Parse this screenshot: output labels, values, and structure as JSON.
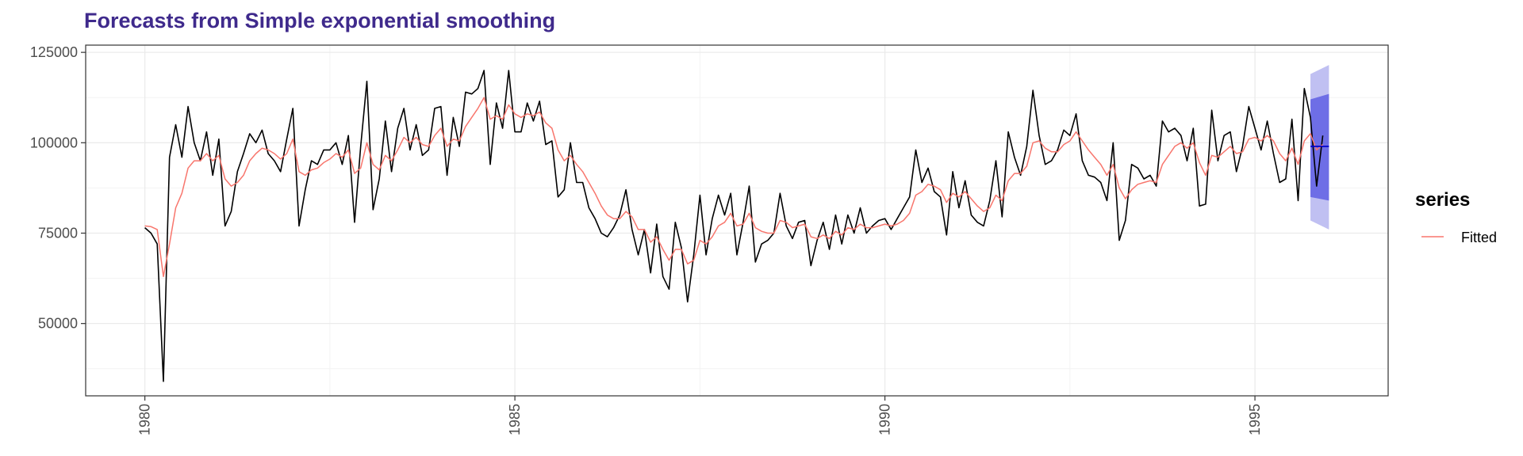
{
  "chart_data": {
    "type": "line",
    "title": "Forecasts from Simple exponential smoothing",
    "xlabel": "",
    "ylabel": "",
    "xlim": [
      1979.2,
      1996.8
    ],
    "ylim": [
      30000,
      127000
    ],
    "x_ticks": [
      1980,
      1985,
      1990,
      1995
    ],
    "x_tick_labels": [
      "1980",
      "1985",
      "1990",
      "1995"
    ],
    "y_ticks": [
      50000,
      75000,
      100000,
      125000
    ],
    "y_tick_labels": [
      "50000",
      "75000",
      "100000",
      "125000"
    ],
    "grid": true,
    "legend": {
      "title": "series",
      "placement": "right",
      "entries": [
        {
          "label": "Fitted",
          "color": "#f8766d"
        }
      ]
    },
    "colors": {
      "title": "#3f2a8c",
      "actual": "#000000",
      "fitted": "#f8766d",
      "forecast": "#0000cc",
      "band80": "#6e6ee6",
      "band95": "#c0c0f2"
    },
    "series": [
      {
        "role": "actual",
        "start": 1980.0,
        "frequency": 12,
        "values": [
          76500,
          75000,
          72000,
          34000,
          96000,
          105000,
          96000,
          110000,
          100000,
          95000,
          103000,
          91000,
          101000,
          77000,
          81000,
          92000,
          97000,
          102500,
          100000,
          103500,
          97000,
          95000,
          92000,
          101000,
          109500,
          77000,
          87000,
          95000,
          94000,
          98000,
          98000,
          100000,
          94000,
          102000,
          78000,
          99000,
          117000,
          81500,
          90000,
          106000,
          92000,
          104000,
          109500,
          98000,
          105000,
          96500,
          98000,
          109500,
          110000,
          91000,
          107000,
          99000,
          114000,
          113500,
          115000,
          120000,
          94000,
          111000,
          104000,
          120000,
          103000,
          103000,
          111000,
          106000,
          111500,
          99500,
          100500,
          85000,
          87000,
          100000,
          89000,
          89000,
          82000,
          79000,
          75000,
          74000,
          76500,
          80000,
          87000,
          76000,
          69000,
          76000,
          64000,
          77500,
          63000,
          59500,
          78000,
          71000,
          56000,
          69000,
          85500,
          69000,
          79000,
          85500,
          80000,
          86000,
          69000,
          78000,
          88000,
          67000,
          72000,
          73000,
          75000,
          86000,
          77000,
          73500,
          78000,
          78500,
          66000,
          73000,
          78000,
          70500,
          80000,
          72000,
          80000,
          75000,
          82000,
          75000,
          77000,
          78500,
          79000,
          76000,
          79000,
          82000,
          85000,
          98000,
          89000,
          93000,
          86500,
          85000,
          74500,
          92000,
          82000,
          89500,
          80000,
          78000,
          77000,
          84000,
          95000,
          79500,
          103000,
          96000,
          91000,
          99000,
          114500,
          102000,
          94000,
          95000,
          98000,
          103500,
          102000,
          108000,
          95000,
          91000,
          90500,
          89000,
          84000,
          100000,
          73000,
          78500,
          94000,
          93000,
          90000,
          91000,
          88000,
          106000,
          103000,
          104000,
          102000,
          95000,
          104000,
          82500,
          83000,
          109000,
          95000,
          102000,
          103000,
          92000,
          99000,
          110000,
          104000,
          98000,
          106000,
          97000,
          89000,
          90000,
          106500,
          84000,
          115000,
          107000,
          88000,
          102000
        ]
      },
      {
        "role": "fitted",
        "name": "Fitted",
        "start": 1980.0,
        "frequency": 12,
        "values": [
          77000,
          76800,
          76000,
          63000,
          72000,
          82000,
          86000,
          93000,
          95000,
          95000,
          97000,
          95000,
          96500,
          90000,
          88000,
          89000,
          91000,
          95000,
          97000,
          98500,
          98000,
          97000,
          95500,
          97000,
          101000,
          92000,
          91000,
          92500,
          93000,
          94500,
          95500,
          97000,
          96000,
          98000,
          91500,
          93000,
          100000,
          94000,
          92500,
          96500,
          95000,
          98000,
          101500,
          100000,
          101500,
          99500,
          99000,
          102000,
          104000,
          99000,
          101000,
          100500,
          104500,
          107000,
          109500,
          112500,
          106500,
          107500,
          106500,
          110500,
          108000,
          107000,
          108000,
          107500,
          108500,
          105500,
          104000,
          98000,
          95000,
          96500,
          94000,
          92000,
          89000,
          86000,
          82500,
          80000,
          79000,
          79000,
          81000,
          79500,
          76000,
          76000,
          72500,
          74000,
          70500,
          67500,
          70500,
          70500,
          66500,
          67500,
          73000,
          72000,
          74000,
          77000,
          78000,
          80500,
          77000,
          77500,
          80500,
          76500,
          75500,
          75000,
          75000,
          78500,
          78000,
          76500,
          77000,
          77500,
          74000,
          73500,
          74500,
          73500,
          75500,
          74500,
          76500,
          76000,
          77500,
          76500,
          76500,
          77000,
          77500,
          77000,
          77500,
          78500,
          80500,
          85500,
          86500,
          88500,
          88000,
          87000,
          83500,
          86000,
          85000,
          86500,
          84500,
          82500,
          81000,
          82000,
          85500,
          84000,
          89500,
          91500,
          91500,
          93500,
          100000,
          100500,
          98500,
          97500,
          97500,
          99500,
          100500,
          103000,
          100500,
          98000,
          96000,
          94000,
          91000,
          94000,
          87500,
          84500,
          87000,
          88500,
          89000,
          89500,
          89000,
          94000,
          96500,
          99000,
          100000,
          98500,
          100000,
          94500,
          91000,
          96500,
          96000,
          97500,
          99000,
          97000,
          97500,
          101000,
          101500,
          100500,
          102000,
          100500,
          97000,
          95000,
          98500,
          94000,
          100500,
          102500,
          98000,
          99500
        ]
      },
      {
        "role": "forecast",
        "x": [
          1995.75,
          1996.0
        ],
        "mean": [
          99000,
          99000
        ],
        "lo80": [
          85000,
          84000
        ],
        "hi80": [
          112000,
          113500
        ],
        "lo95": [
          78500,
          76000
        ],
        "hi95": [
          119000,
          121500
        ]
      }
    ]
  }
}
